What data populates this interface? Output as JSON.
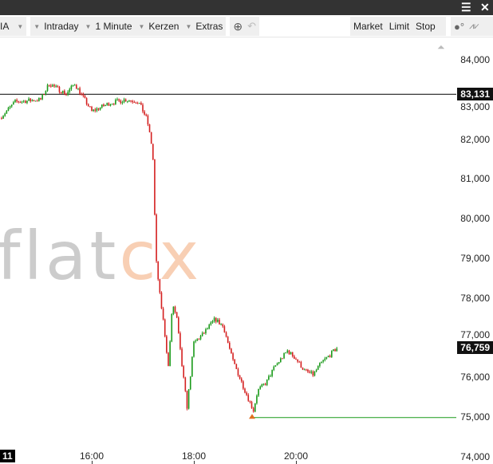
{
  "titlebar": {
    "menu_icon": "hamburger-icon",
    "close_icon": "close-icon"
  },
  "toolbar": {
    "indicator_partial": "IA",
    "period": "Intraday",
    "interval": "1 Minute",
    "chart_type": "Kerzen",
    "extras": "Extras",
    "zoom_icon": "zoom-in-icon",
    "undo_icon": "undo-icon",
    "orders": [
      "Market",
      "Limit",
      "Stop"
    ],
    "tools_icon": "lightbulb-icon",
    "pulse_icon": "pulse-icon"
  },
  "watermark": "flatex",
  "chart_data": {
    "type": "candlestick",
    "x_ticks": [
      "16:00",
      "18:00",
      "20:00"
    ],
    "x_left_partial": "11",
    "y_ticks": [
      "84,000",
      "83,000",
      "82,000",
      "81,000",
      "80,000",
      "79,000",
      "78,000",
      "77,000",
      "76,000",
      "75,000",
      "74,000"
    ],
    "ylim": [
      74000,
      84000
    ],
    "xlim": [
      "14:12",
      "21:45"
    ],
    "horizontal_line": {
      "value": 83131,
      "label": "83,131",
      "color": "#000000"
    },
    "low_line": {
      "value": 74990,
      "color": "#1a9a1a"
    },
    "last_price": {
      "value": 76759,
      "label": "76,759"
    },
    "up_color": "#1a9a1a",
    "down_color": "#d42020",
    "path": [
      [
        "14:12",
        82530
      ],
      [
        "14:30",
        82940
      ],
      [
        "15:00",
        83000
      ],
      [
        "15:10",
        83400
      ],
      [
        "15:30",
        83140
      ],
      [
        "15:40",
        83400
      ],
      [
        "16:00",
        82700
      ],
      [
        "16:20",
        82900
      ],
      [
        "16:40",
        83000
      ],
      [
        "16:55",
        82940
      ],
      [
        "17:05",
        82500
      ],
      [
        "17:10",
        81900
      ],
      [
        "17:12",
        81490
      ],
      [
        "17:14",
        80080
      ],
      [
        "17:16",
        78880
      ],
      [
        "17:20",
        78080
      ],
      [
        "17:25",
        77270
      ],
      [
        "17:30",
        76270
      ],
      [
        "17:35",
        77870
      ],
      [
        "17:40",
        77470
      ],
      [
        "17:45",
        76470
      ],
      [
        "17:52",
        75260
      ],
      [
        "18:00",
        76870
      ],
      [
        "18:10",
        77070
      ],
      [
        "18:25",
        77470
      ],
      [
        "18:35",
        77270
      ],
      [
        "18:45",
        76470
      ],
      [
        "19:00",
        75670
      ],
      [
        "19:10",
        75170
      ],
      [
        "19:15",
        75670
      ],
      [
        "19:25",
        75870
      ],
      [
        "19:35",
        76270
      ],
      [
        "19:50",
        76670
      ],
      [
        "20:00",
        76470
      ],
      [
        "20:10",
        76170
      ],
      [
        "20:20",
        76070
      ],
      [
        "20:30",
        76370
      ],
      [
        "20:40",
        76570
      ],
      [
        "20:49",
        76759
      ]
    ]
  }
}
